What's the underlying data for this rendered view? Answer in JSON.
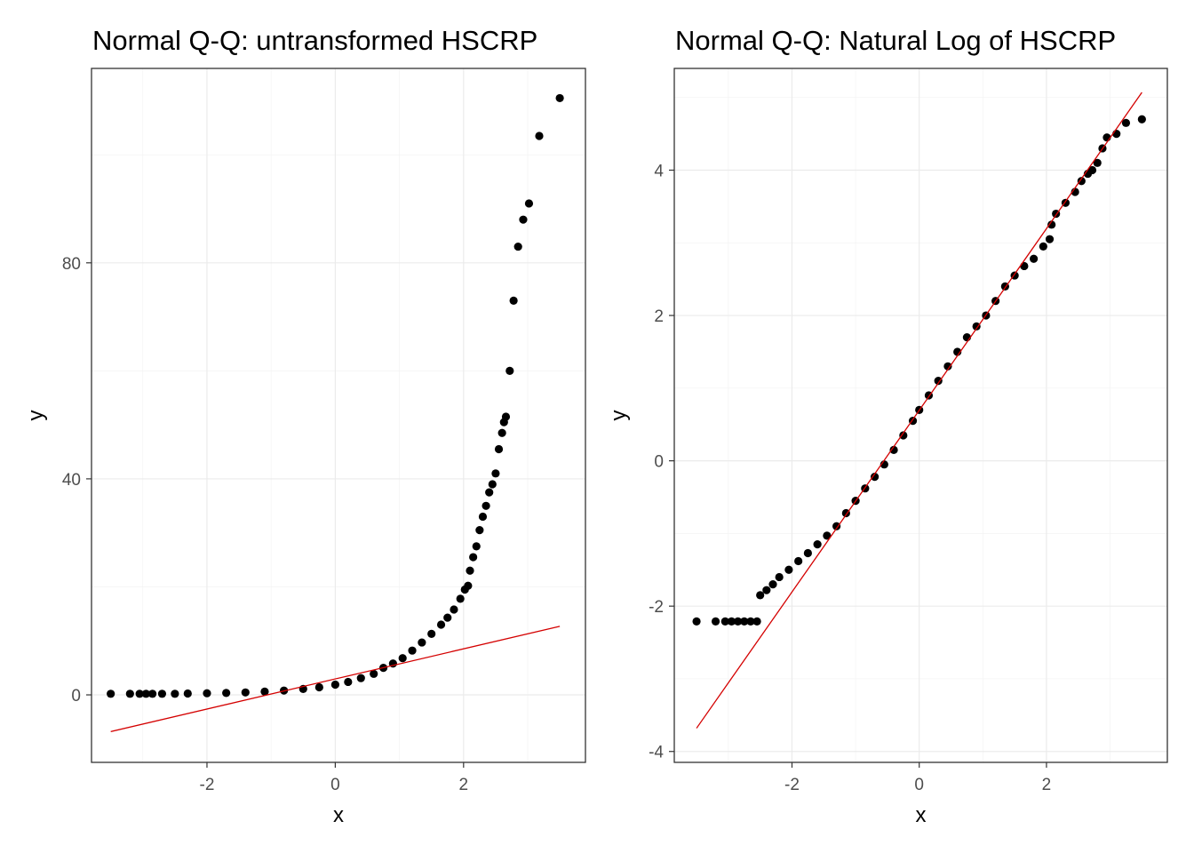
{
  "chart_data": [
    {
      "type": "scatter",
      "title": "Normal Q-Q: untransformed HSCRP",
      "xlabel": "x",
      "ylabel": "y",
      "xlim": [
        -3.8,
        3.9
      ],
      "ylim": [
        -12.5,
        116
      ],
      "x_ticks": [
        -2,
        0,
        2
      ],
      "y_ticks": [
        0,
        40,
        80
      ],
      "grid": true,
      "legend": "none",
      "reference_line": {
        "x": [
          -3.5,
          3.5
        ],
        "y": [
          -6.8,
          12.7
        ],
        "color": "#d40000"
      },
      "points": [
        [
          -3.5,
          0.2
        ],
        [
          -3.2,
          0.2
        ],
        [
          -3.05,
          0.2
        ],
        [
          -2.95,
          0.2
        ],
        [
          -2.85,
          0.2
        ],
        [
          -2.7,
          0.2
        ],
        [
          -2.5,
          0.2
        ],
        [
          -2.3,
          0.25
        ],
        [
          -2.0,
          0.3
        ],
        [
          -1.7,
          0.35
        ],
        [
          -1.4,
          0.45
        ],
        [
          -1.1,
          0.6
        ],
        [
          -0.8,
          0.8
        ],
        [
          -0.5,
          1.1
        ],
        [
          -0.25,
          1.4
        ],
        [
          0.0,
          1.9
        ],
        [
          0.2,
          2.4
        ],
        [
          0.4,
          3.1
        ],
        [
          0.6,
          3.9
        ],
        [
          0.75,
          5.0
        ],
        [
          0.9,
          5.8
        ],
        [
          1.05,
          6.8
        ],
        [
          1.2,
          8.2
        ],
        [
          1.35,
          9.7
        ],
        [
          1.5,
          11.3
        ],
        [
          1.65,
          13.0
        ],
        [
          1.75,
          14.3
        ],
        [
          1.85,
          15.8
        ],
        [
          1.95,
          17.8
        ],
        [
          2.02,
          19.5
        ],
        [
          2.07,
          20.2
        ],
        [
          2.1,
          23.0
        ],
        [
          2.15,
          25.5
        ],
        [
          2.2,
          27.5
        ],
        [
          2.25,
          30.5
        ],
        [
          2.3,
          33.0
        ],
        [
          2.35,
          35.0
        ],
        [
          2.4,
          37.5
        ],
        [
          2.45,
          39.0
        ],
        [
          2.5,
          41.0
        ],
        [
          2.55,
          45.5
        ],
        [
          2.6,
          48.5
        ],
        [
          2.63,
          50.5
        ],
        [
          2.66,
          51.5
        ],
        [
          2.72,
          60.0
        ],
        [
          2.78,
          73.0
        ],
        [
          2.85,
          83.0
        ],
        [
          2.93,
          88.0
        ],
        [
          3.02,
          91.0
        ],
        [
          3.18,
          103.5
        ],
        [
          3.5,
          110.5
        ]
      ]
    },
    {
      "type": "scatter",
      "title": "Normal Q-Q: Natural Log of HSCRP",
      "xlabel": "x",
      "ylabel": "y",
      "xlim": [
        -3.85,
        3.9
      ],
      "ylim": [
        -4.15,
        5.4
      ],
      "x_ticks": [
        -2,
        0,
        2
      ],
      "y_ticks": [
        -4,
        -2,
        0,
        2,
        4
      ],
      "grid": true,
      "legend": "none",
      "reference_line": {
        "x": [
          -3.5,
          3.5
        ],
        "y": [
          -3.68,
          5.07
        ],
        "color": "#d40000"
      },
      "points": [
        [
          -3.5,
          -2.21
        ],
        [
          -3.2,
          -2.21
        ],
        [
          -3.05,
          -2.21
        ],
        [
          -2.95,
          -2.21
        ],
        [
          -2.85,
          -2.21
        ],
        [
          -2.75,
          -2.21
        ],
        [
          -2.65,
          -2.21
        ],
        [
          -2.55,
          -2.21
        ],
        [
          -2.5,
          -1.85
        ],
        [
          -2.4,
          -1.78
        ],
        [
          -2.3,
          -1.7
        ],
        [
          -2.2,
          -1.6
        ],
        [
          -2.05,
          -1.5
        ],
        [
          -1.9,
          -1.38
        ],
        [
          -1.75,
          -1.27
        ],
        [
          -1.6,
          -1.15
        ],
        [
          -1.45,
          -1.03
        ],
        [
          -1.3,
          -0.9
        ],
        [
          -1.15,
          -0.72
        ],
        [
          -1.0,
          -0.55
        ],
        [
          -0.85,
          -0.38
        ],
        [
          -0.7,
          -0.22
        ],
        [
          -0.55,
          -0.05
        ],
        [
          -0.4,
          0.15
        ],
        [
          -0.25,
          0.35
        ],
        [
          -0.1,
          0.55
        ],
        [
          0.0,
          0.7
        ],
        [
          0.15,
          0.9
        ],
        [
          0.3,
          1.1
        ],
        [
          0.45,
          1.3
        ],
        [
          0.6,
          1.5
        ],
        [
          0.75,
          1.7
        ],
        [
          0.9,
          1.85
        ],
        [
          1.05,
          2.0
        ],
        [
          1.2,
          2.2
        ],
        [
          1.35,
          2.4
        ],
        [
          1.5,
          2.55
        ],
        [
          1.65,
          2.68
        ],
        [
          1.8,
          2.78
        ],
        [
          1.95,
          2.95
        ],
        [
          2.05,
          3.05
        ],
        [
          2.08,
          3.25
        ],
        [
          2.15,
          3.4
        ],
        [
          2.3,
          3.55
        ],
        [
          2.45,
          3.7
        ],
        [
          2.55,
          3.85
        ],
        [
          2.65,
          3.95
        ],
        [
          2.72,
          4.0
        ],
        [
          2.8,
          4.1
        ],
        [
          2.88,
          4.3
        ],
        [
          2.95,
          4.45
        ],
        [
          3.1,
          4.5
        ],
        [
          3.25,
          4.65
        ],
        [
          3.5,
          4.7
        ]
      ]
    }
  ]
}
